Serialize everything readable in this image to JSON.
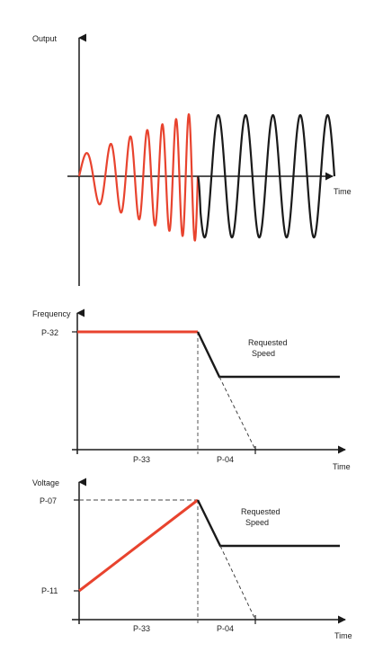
{
  "panels": {
    "output_plot": {
      "y_label": "Output",
      "x_label": "Time",
      "waves": {
        "ramp_color": "#e8432e",
        "steady_color": "#1a1a1a",
        "ramp_cycles": 7,
        "steady_cycles": 5,
        "ramp_start_amplitude": 0.27,
        "steady_amplitude": 0.81
      }
    },
    "frequency_plot": {
      "y_label": "Frequency",
      "x_label": "Time",
      "y_tick": "P-32",
      "x_segment_1": "P-33",
      "x_segment_2": "P-04",
      "annotation_line1": "Requested",
      "annotation_line2": "Speed",
      "ramp_color": "#e8432e",
      "line_color": "#1a1a1a"
    },
    "voltage_plot": {
      "y_label": "Voltage",
      "x_label": "Time",
      "y_tick_top": "P-07",
      "y_tick_bottom": "P-11",
      "x_segment_1": "P-33",
      "x_segment_2": "P-04",
      "annotation_line1": "Requested",
      "annotation_line2": "Speed",
      "ramp_color": "#e8432e",
      "line_color": "#1a1a1a"
    }
  }
}
